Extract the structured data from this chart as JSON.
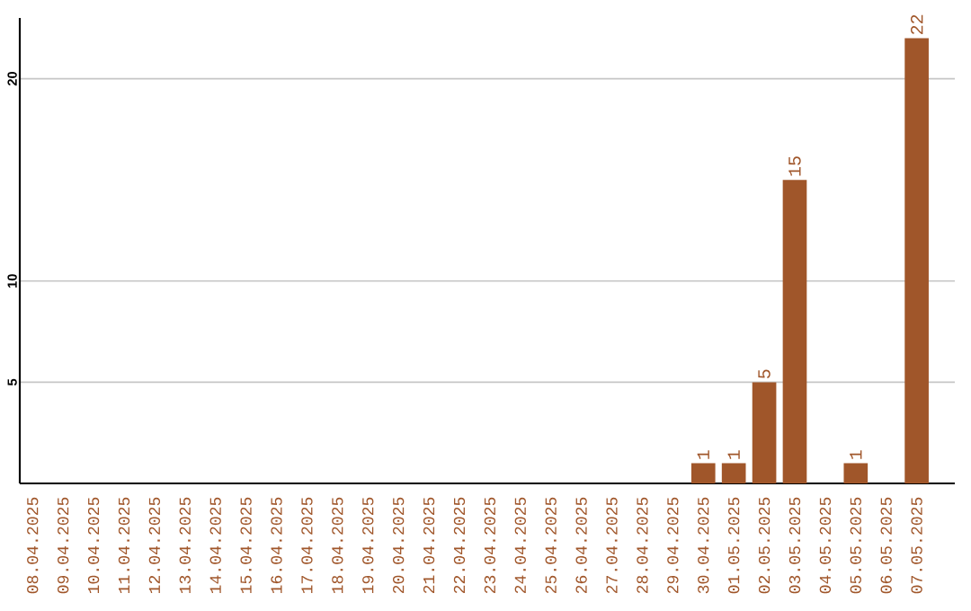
{
  "chart_data": {
    "type": "bar",
    "categories": [
      "08.04.2025",
      "09.04.2025",
      "10.04.2025",
      "11.04.2025",
      "12.04.2025",
      "13.04.2025",
      "14.04.2025",
      "15.04.2025",
      "16.04.2025",
      "17.04.2025",
      "18.04.2025",
      "19.04.2025",
      "20.04.2025",
      "21.04.2025",
      "22.04.2025",
      "23.04.2025",
      "24.04.2025",
      "25.04.2025",
      "26.04.2025",
      "27.04.2025",
      "28.04.2025",
      "29.04.2025",
      "30.04.2025",
      "01.05.2025",
      "02.05.2025",
      "03.05.2025",
      "04.05.2025",
      "05.05.2025",
      "06.05.2025",
      "07.05.2025"
    ],
    "values": [
      0,
      0,
      0,
      0,
      0,
      0,
      0,
      0,
      0,
      0,
      0,
      0,
      0,
      0,
      0,
      0,
      0,
      0,
      0,
      0,
      0,
      0,
      1,
      1,
      5,
      15,
      0,
      1,
      0,
      22
    ],
    "value_labels": [
      null,
      null,
      null,
      null,
      null,
      null,
      null,
      null,
      null,
      null,
      null,
      null,
      null,
      null,
      null,
      null,
      null,
      null,
      null,
      null,
      null,
      null,
      "1",
      "1",
      "5",
      "15",
      null,
      "1",
      null,
      "22"
    ],
    "color": "#a0562a",
    "ylim": [
      0,
      23
    ],
    "yticks": [
      5,
      10,
      20
    ],
    "grid": "y"
  }
}
